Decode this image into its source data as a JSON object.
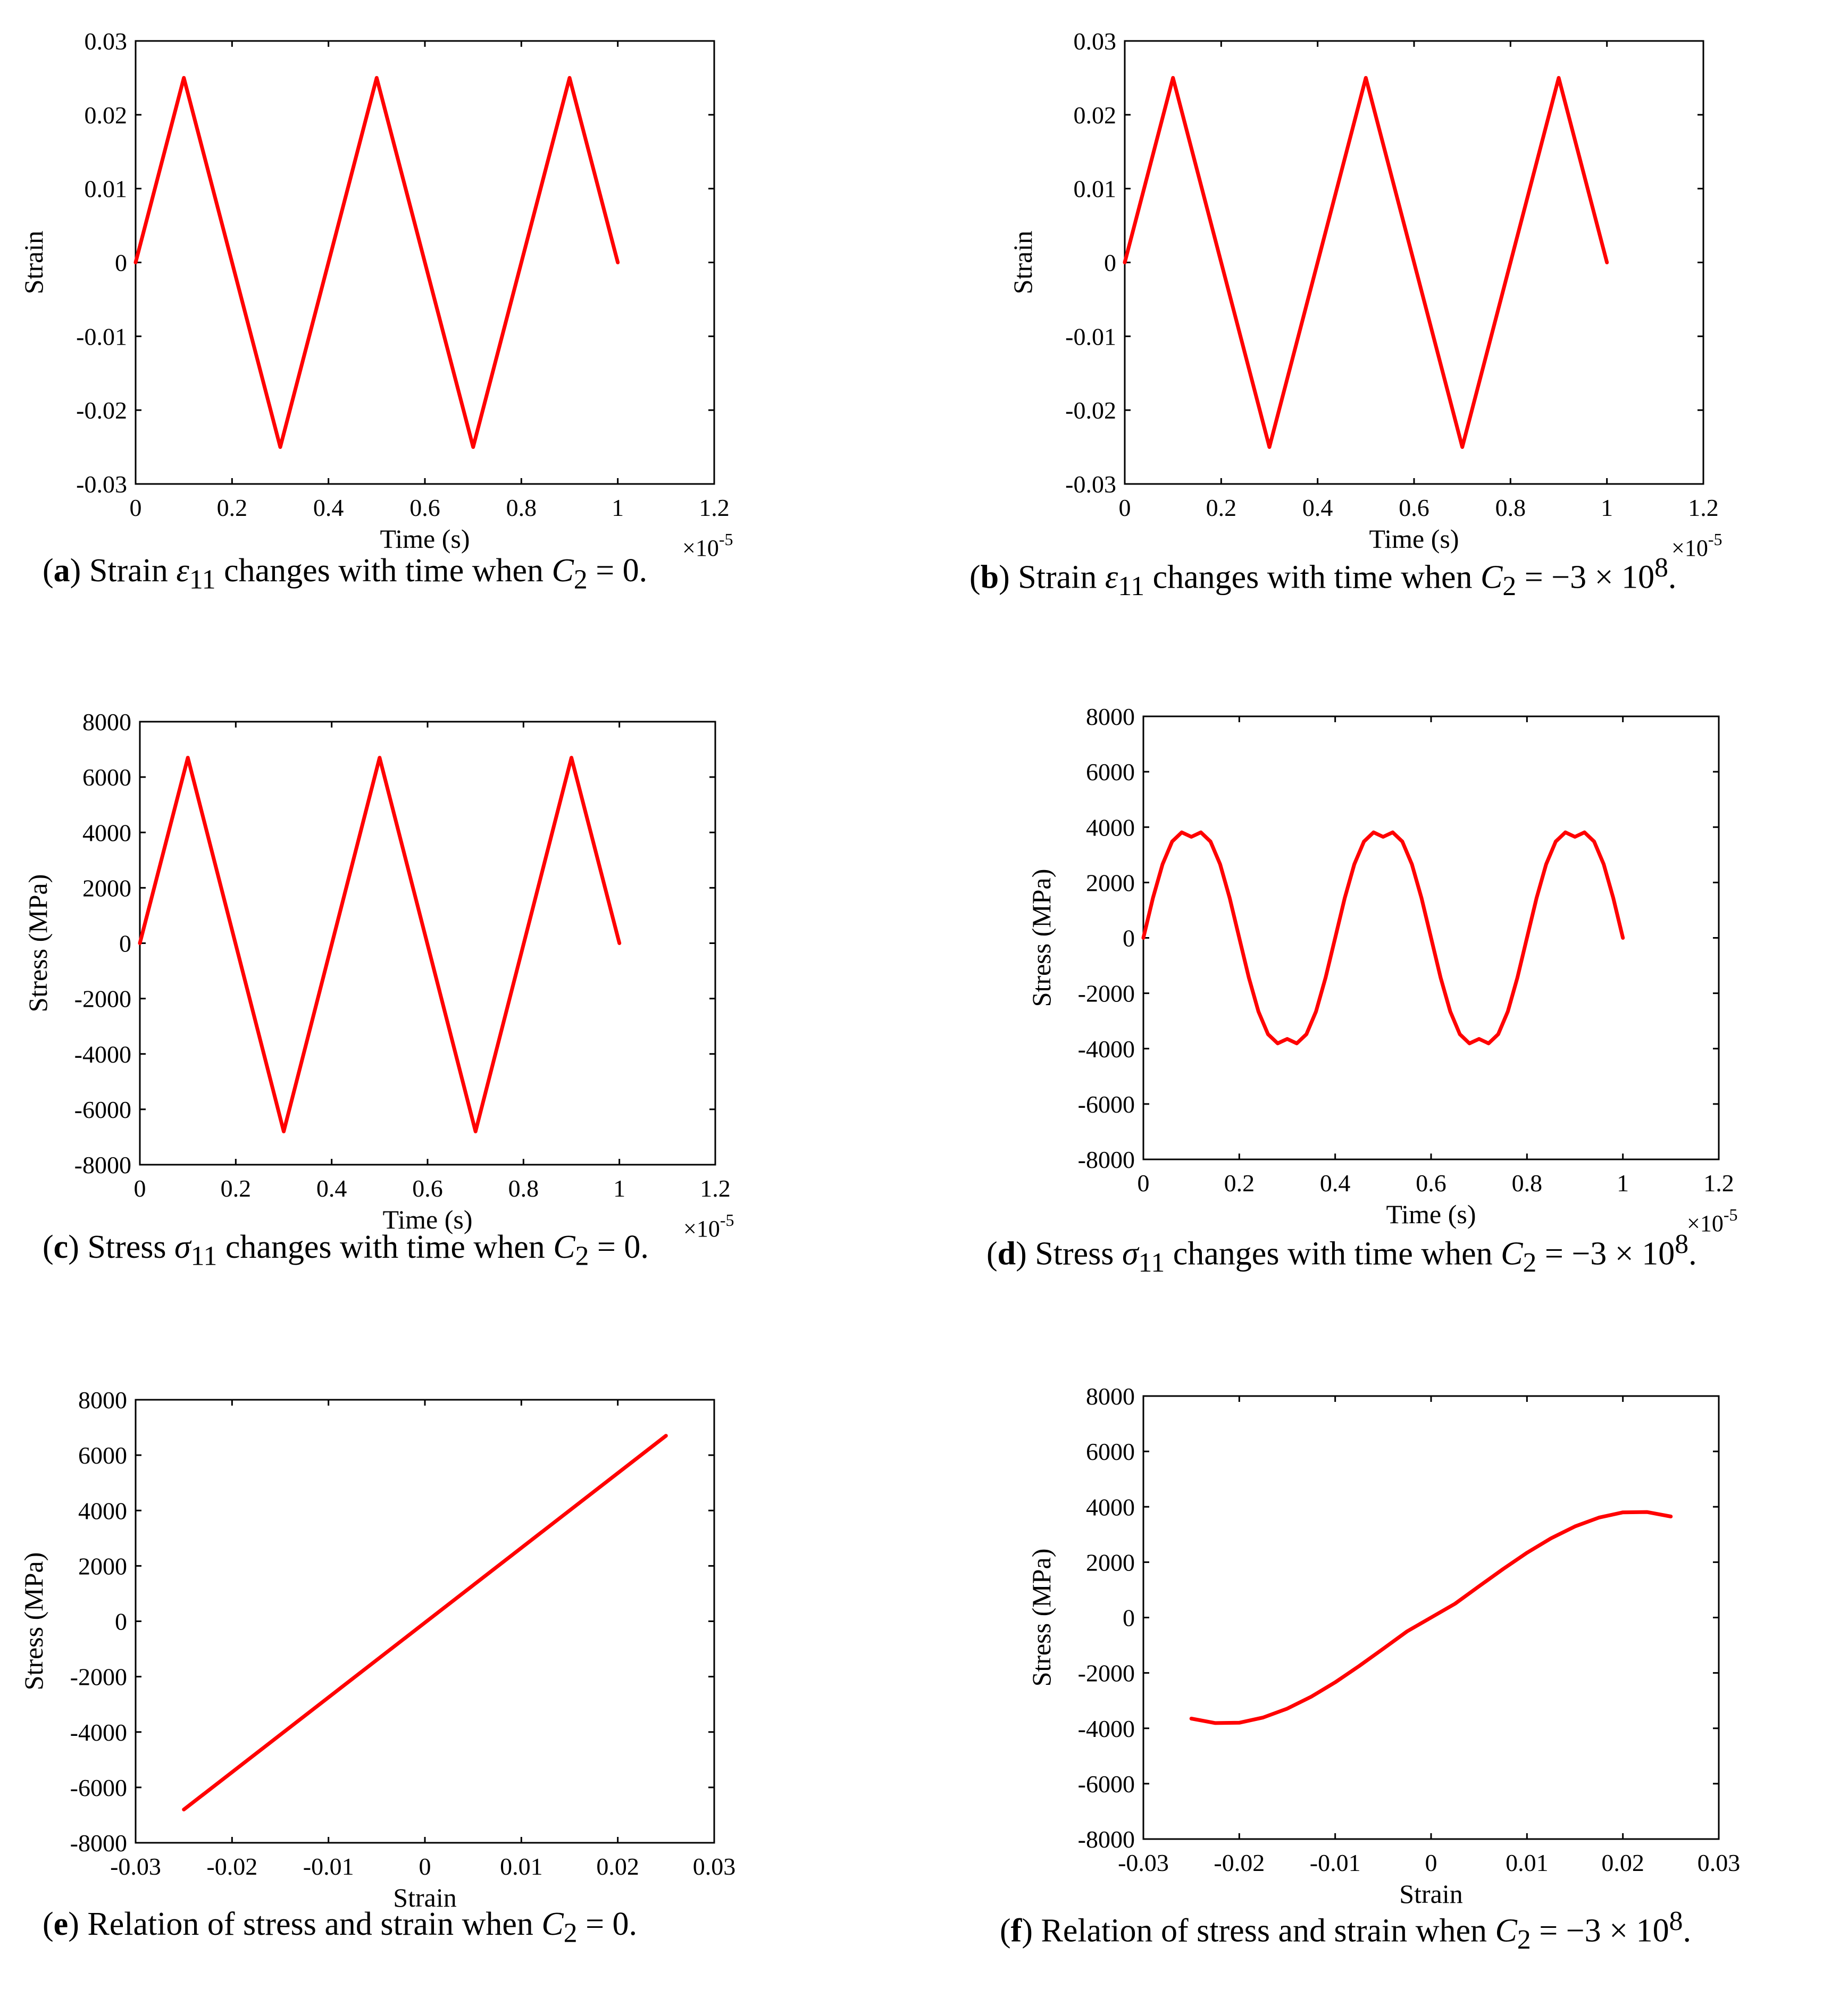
{
  "figure": {
    "panels": [
      {
        "id": "a",
        "caption": {
          "label": "a",
          "text": "Strain ε₁₁ changes with time when C₂ = 0.",
          "prefix": "Strain ",
          "symbol": "ε",
          "sub": "11",
          "mid": " changes with time when ",
          "cvar": "C",
          "csub": "2",
          "suffix": " = 0."
        },
        "chart_data": {
          "type": "line",
          "title": "",
          "xlabel": "Time (s)",
          "ylabel": "Strain",
          "x_exponent_label": "×10⁻⁵",
          "x_exp_base": "×10",
          "x_exp_pow": "-5",
          "xlim": [
            0,
            1.2
          ],
          "ylim": [
            -0.03,
            0.03
          ],
          "xticks": [
            0,
            0.2,
            0.4,
            0.6,
            0.8,
            1,
            1.2
          ],
          "xtick_labels": [
            "0",
            "0.2",
            "0.4",
            "0.6",
            "0.8",
            "1",
            "1.2"
          ],
          "yticks": [
            -0.03,
            -0.02,
            -0.01,
            0,
            0.01,
            0.02,
            0.03
          ],
          "ytick_labels": [
            "-0.03",
            "-0.02",
            "-0.01",
            "0",
            "0.01",
            "0.02",
            "0.03"
          ],
          "grid": false,
          "series": [
            {
              "name": "strain",
              "color": "#ff0000",
              "x": [
                0,
                0.1,
                0.3,
                0.5,
                0.7,
                0.9,
                1.0
              ],
              "y": [
                0,
                0.025,
                -0.025,
                0.025,
                -0.025,
                0.025,
                0
              ]
            }
          ]
        }
      },
      {
        "id": "b",
        "caption": {
          "label": "b",
          "text": "Strain ε₁₁ changes with time when C₂ = −3 × 10⁸.",
          "prefix": "Strain ",
          "symbol": "ε",
          "sub": "11",
          "mid": " changes with time when ",
          "cvar": "C",
          "csub": "2",
          "suffix": " = −3 × 10",
          "sup": "8",
          "end": "."
        },
        "chart_data": {
          "type": "line",
          "title": "",
          "xlabel": "Time (s)",
          "ylabel": "Strain",
          "x_exponent_label": "×10⁻⁵",
          "x_exp_base": "×10",
          "x_exp_pow": "-5",
          "xlim": [
            0,
            1.2
          ],
          "ylim": [
            -0.03,
            0.03
          ],
          "xticks": [
            0,
            0.2,
            0.4,
            0.6,
            0.8,
            1,
            1.2
          ],
          "xtick_labels": [
            "0",
            "0.2",
            "0.4",
            "0.6",
            "0.8",
            "1",
            "1.2"
          ],
          "yticks": [
            -0.03,
            -0.02,
            -0.01,
            0,
            0.01,
            0.02,
            0.03
          ],
          "ytick_labels": [
            "-0.03",
            "-0.02",
            "-0.01",
            "0",
            "0.01",
            "0.02",
            "0.03"
          ],
          "grid": false,
          "series": [
            {
              "name": "strain",
              "color": "#ff0000",
              "x": [
                0,
                0.1,
                0.3,
                0.5,
                0.7,
                0.9,
                1.0
              ],
              "y": [
                0,
                0.025,
                -0.025,
                0.025,
                -0.025,
                0.025,
                0
              ]
            }
          ]
        }
      },
      {
        "id": "c",
        "caption": {
          "label": "c",
          "text": "Stress σ₁₁ changes with time when C₂ = 0.",
          "prefix": "Stress ",
          "symbol": "σ",
          "sub": "11",
          "mid": " changes with time when ",
          "cvar": "C",
          "csub": "2",
          "suffix": " = 0."
        },
        "chart_data": {
          "type": "line",
          "title": "",
          "xlabel": "Time (s)",
          "ylabel": "Stress (MPa)",
          "x_exponent_label": "×10⁻⁵",
          "x_exp_base": "×10",
          "x_exp_pow": "-5",
          "xlim": [
            0,
            1.2
          ],
          "ylim": [
            -8000,
            8000
          ],
          "xticks": [
            0,
            0.2,
            0.4,
            0.6,
            0.8,
            1,
            1.2
          ],
          "xtick_labels": [
            "0",
            "0.2",
            "0.4",
            "0.6",
            "0.8",
            "1",
            "1.2"
          ],
          "yticks": [
            -8000,
            -6000,
            -4000,
            -2000,
            0,
            2000,
            4000,
            6000,
            8000
          ],
          "ytick_labels": [
            "-8000",
            "-6000",
            "-4000",
            "-2000",
            "0",
            "2000",
            "4000",
            "6000",
            "8000"
          ],
          "grid": false,
          "series": [
            {
              "name": "stress",
              "color": "#ff0000",
              "x": [
                0,
                0.1,
                0.3,
                0.5,
                0.7,
                0.9,
                1.0
              ],
              "y": [
                0,
                6700,
                -6800,
                6700,
                -6800,
                6700,
                0
              ]
            }
          ]
        }
      },
      {
        "id": "d",
        "caption": {
          "label": "d",
          "text": "Stress σ₁₁ changes with time when C₂ = −3 × 10⁸.",
          "prefix": "Stress ",
          "symbol": "σ",
          "sub": "11",
          "mid": " changes with time when ",
          "cvar": "C",
          "csub": "2",
          "suffix": " = −3 × 10",
          "sup": "8",
          "end": "."
        },
        "chart_data": {
          "type": "line",
          "title": "",
          "xlabel": "Time (s)",
          "ylabel": "Stress (MPa)",
          "x_exponent_label": "×10⁻⁵",
          "x_exp_base": "×10",
          "x_exp_pow": "-5",
          "xlim": [
            0,
            1.2
          ],
          "ylim": [
            -8000,
            8000
          ],
          "xticks": [
            0,
            0.2,
            0.4,
            0.6,
            0.8,
            1,
            1.2
          ],
          "xtick_labels": [
            "0",
            "0.2",
            "0.4",
            "0.6",
            "0.8",
            "1",
            "1.2"
          ],
          "yticks": [
            -8000,
            -6000,
            -4000,
            -2000,
            0,
            2000,
            4000,
            6000,
            8000
          ],
          "ytick_labels": [
            "-8000",
            "-6000",
            "-4000",
            "-2000",
            "0",
            "2000",
            "4000",
            "6000",
            "8000"
          ],
          "grid": false,
          "series": [
            {
              "name": "stress",
              "color": "#ff0000",
              "x": [
                0,
                0.02,
                0.04,
                0.06,
                0.08,
                0.1,
                0.12,
                0.14,
                0.16,
                0.18,
                0.2,
                0.22,
                0.24,
                0.26,
                0.28,
                0.3,
                0.32,
                0.34,
                0.36,
                0.38,
                0.4,
                0.42,
                0.44,
                0.46,
                0.48,
                0.5,
                0.52,
                0.54,
                0.56,
                0.58,
                0.6,
                0.62,
                0.64,
                0.66,
                0.68,
                0.7,
                0.72,
                0.74,
                0.76,
                0.78,
                0.8,
                0.82,
                0.84,
                0.86,
                0.88,
                0.9,
                0.92,
                0.94,
                0.96,
                0.98,
                1.0
              ],
              "y": [
                0,
                1440,
                2660,
                3480,
                3810,
                3650,
                3810,
                3480,
                2660,
                1440,
                0,
                -1440,
                -2660,
                -3480,
                -3810,
                -3650,
                -3810,
                -3480,
                -2660,
                -1440,
                0,
                1440,
                2660,
                3480,
                3810,
                3650,
                3810,
                3480,
                2660,
                1440,
                0,
                -1440,
                -2660,
                -3480,
                -3810,
                -3650,
                -3810,
                -3480,
                -2660,
                -1440,
                0,
                1440,
                2660,
                3480,
                3810,
                3650,
                3810,
                3480,
                2660,
                1440,
                0
              ]
            }
          ]
        }
      },
      {
        "id": "e",
        "caption": {
          "label": "e",
          "text": "Relation of stress and strain when C₂ = 0.",
          "prefix": "Relation of stress and strain when ",
          "cvar": "C",
          "csub": "2",
          "suffix": " = 0."
        },
        "chart_data": {
          "type": "line",
          "title": "",
          "xlabel": "Strain",
          "ylabel": "Stress (MPa)",
          "xlim": [
            -0.03,
            0.03
          ],
          "ylim": [
            -8000,
            8000
          ],
          "xticks": [
            -0.03,
            -0.02,
            -0.01,
            0,
            0.01,
            0.02,
            0.03
          ],
          "xtick_labels": [
            "-0.03",
            "-0.02",
            "-0.01",
            "0",
            "0.01",
            "0.02",
            "0.03"
          ],
          "yticks": [
            -8000,
            -6000,
            -4000,
            -2000,
            0,
            2000,
            4000,
            6000,
            8000
          ],
          "ytick_labels": [
            "-8000",
            "-6000",
            "-4000",
            "-2000",
            "0",
            "2000",
            "4000",
            "6000",
            "8000"
          ],
          "grid": false,
          "series": [
            {
              "name": "stress-strain",
              "color": "#ff0000",
              "x": [
                -0.025,
                0.025
              ],
              "y": [
                -6800,
                6700
              ]
            }
          ]
        }
      },
      {
        "id": "f",
        "caption": {
          "label": "f",
          "text": "Relation of stress and strain when C₂ = −3 × 10⁸.",
          "prefix": "Relation of stress and strain when ",
          "cvar": "C",
          "csub": "2",
          "suffix": " = −3 × 10",
          "sup": "8",
          "end": "."
        },
        "chart_data": {
          "type": "line",
          "title": "",
          "xlabel": "Strain",
          "ylabel": "Stress (MPa)",
          "xlim": [
            -0.03,
            0.03
          ],
          "ylim": [
            -8000,
            8000
          ],
          "xticks": [
            -0.03,
            -0.02,
            -0.01,
            0,
            0.01,
            0.02,
            0.03
          ],
          "xtick_labels": [
            "-0.03",
            "-0.02",
            "-0.01",
            "0",
            "0.01",
            "0.02",
            "0.03"
          ],
          "yticks": [
            -8000,
            -6000,
            -4000,
            -2000,
            0,
            2000,
            4000,
            6000,
            8000
          ],
          "ytick_labels": [
            "-8000",
            "-6000",
            "-4000",
            "-2000",
            "0",
            "2000",
            "4000",
            "6000",
            "8000"
          ],
          "grid": false,
          "series": [
            {
              "name": "stress-strain",
              "color": "#ff0000",
              "x": [
                -0.025,
                -0.0225,
                -0.02,
                -0.0175,
                -0.015,
                -0.0125,
                -0.01,
                -0.0075,
                -0.005,
                -0.0025,
                0,
                0.0025,
                0.005,
                0.0075,
                0.01,
                0.0125,
                0.015,
                0.0175,
                0.02,
                0.0225,
                0.025
              ],
              "y": [
                -3650,
                -3810,
                -3800,
                -3610,
                -3290,
                -2860,
                -2340,
                -1750,
                -1130,
                -500,
                0,
                500,
                1130,
                1750,
                2340,
                2860,
                3290,
                3610,
                3800,
                3810,
                3650
              ]
            }
          ]
        }
      }
    ]
  }
}
